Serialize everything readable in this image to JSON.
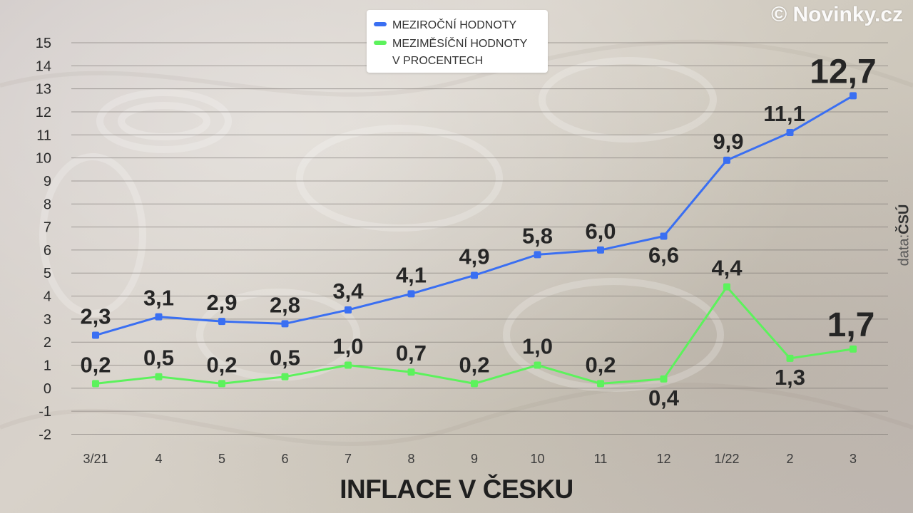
{
  "watermark": "© Novinky.cz",
  "source": {
    "prefix": "data:",
    "name": "ČSÚ"
  },
  "chart_data": {
    "type": "line",
    "title": "INFLACE V ČESKU",
    "categories": [
      "3/21",
      "4",
      "5",
      "6",
      "7",
      "8",
      "9",
      "10",
      "11",
      "12",
      "1/22",
      "2",
      "3"
    ],
    "ylim": [
      -2,
      15
    ],
    "yticks": [
      -2,
      -1,
      0,
      1,
      2,
      3,
      4,
      5,
      6,
      7,
      8,
      9,
      10,
      11,
      12,
      13,
      14,
      15
    ],
    "grid": true,
    "legend_position": "top-center",
    "legend": [
      "MEZIROČNÍ HODNOTY",
      "MEZIMĚSÍČNÍ HODNOTY",
      "V PROCENTECH"
    ],
    "series": [
      {
        "name": "MEZIROČNÍ HODNOTY",
        "color": "#3a6ff2",
        "values": [
          2.3,
          3.1,
          2.9,
          2.8,
          3.4,
          4.1,
          4.9,
          5.8,
          6.0,
          6.6,
          9.9,
          11.1,
          12.7
        ],
        "labels": [
          "2,3",
          "3,1",
          "2,9",
          "2,8",
          "3,4",
          "4,1",
          "4,9",
          "5,8",
          "6,0",
          "6,6",
          "9,9",
          "11,1",
          "12,7"
        ]
      },
      {
        "name": "MEZIMĚSÍČNÍ HODNOTY",
        "color": "#5cf25c",
        "values": [
          0.2,
          0.5,
          0.2,
          0.5,
          1.0,
          0.7,
          0.2,
          1.0,
          0.2,
          0.4,
          4.4,
          1.3,
          1.7
        ],
        "labels": [
          "0,2",
          "0,5",
          "0,2",
          "0,5",
          "1,0",
          "0,7",
          "0,2",
          "1,0",
          "0,2",
          "0,4",
          "4,4",
          "1,3",
          "1,7"
        ]
      }
    ]
  }
}
